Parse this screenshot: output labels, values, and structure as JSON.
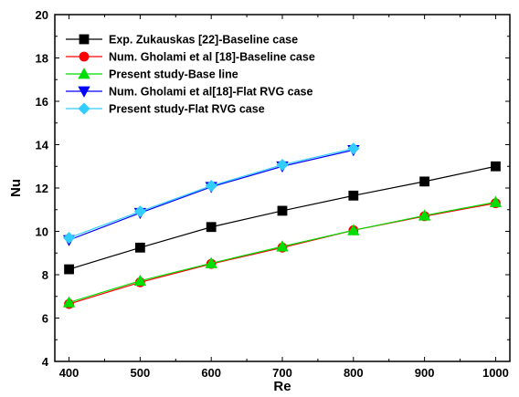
{
  "chart_data": {
    "type": "line",
    "xlabel": "Re",
    "ylabel": "Nu",
    "xlim": [
      380,
      1020
    ],
    "ylim": [
      4,
      20
    ],
    "xticks": [
      400,
      500,
      600,
      700,
      800,
      900,
      1000
    ],
    "yticks": [
      4,
      6,
      8,
      10,
      12,
      14,
      16,
      18,
      20
    ],
    "grid": false,
    "legend_position": "top-left",
    "series": [
      {
        "name": "Exp. Zukauskas [22]-Baseline case",
        "marker": "square",
        "color": "#000000",
        "x": [
          400,
          500,
          600,
          700,
          800,
          900,
          1000
        ],
        "y": [
          8.25,
          9.25,
          10.2,
          10.95,
          11.65,
          12.3,
          13.0
        ]
      },
      {
        "name": "Num. Gholami et al [18]-Baseline case",
        "marker": "circle",
        "color": "#ff0000",
        "x": [
          400,
          500,
          600,
          700,
          800,
          900,
          1000
        ],
        "y": [
          6.65,
          7.65,
          8.5,
          9.25,
          10.05,
          10.7,
          11.3
        ]
      },
      {
        "name": "Present study-Base line",
        "marker": "triangle-up",
        "color": "#00dd00",
        "x": [
          400,
          500,
          600,
          700,
          800,
          900,
          1000
        ],
        "y": [
          6.72,
          7.72,
          8.53,
          9.3,
          10.05,
          10.73,
          11.35
        ]
      },
      {
        "name": "Num. Gholami et al[18]-Flat RVG case",
        "marker": "triangle-down",
        "color": "#0000ff",
        "x": [
          400,
          500,
          600,
          700,
          800
        ],
        "y": [
          9.6,
          10.85,
          12.05,
          13.0,
          13.75
        ]
      },
      {
        "name": "Present study-Flat RVG case",
        "marker": "diamond",
        "color": "#33ccff",
        "x": [
          400,
          500,
          600,
          700,
          800
        ],
        "y": [
          9.7,
          10.92,
          12.1,
          13.07,
          13.82
        ]
      }
    ]
  }
}
